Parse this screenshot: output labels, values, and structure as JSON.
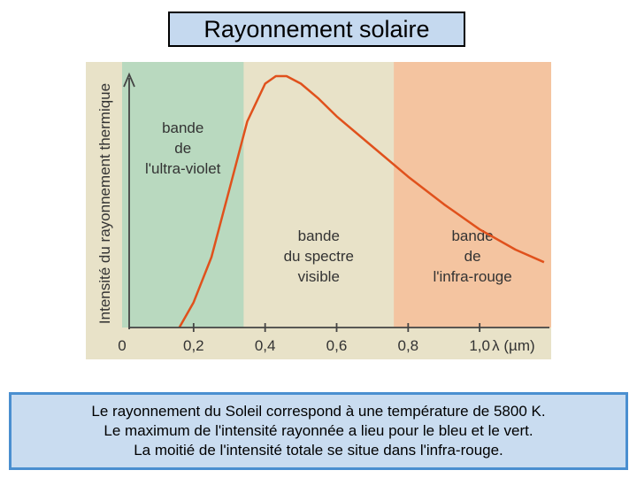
{
  "title": "Rayonnement solaire",
  "chart_data": {
    "type": "area",
    "ylabel": "Intensité du rayonnement thermique",
    "xlabel": "λ (µm)",
    "x_ticks": [
      "0",
      "0,2",
      "0,4",
      "0,6",
      "0,8",
      "1,0"
    ],
    "xlim": [
      0,
      1.2
    ],
    "bands": [
      {
        "label": [
          "bande",
          "de",
          "l'ultra-violet"
        ],
        "from": 0.0,
        "to": 0.34,
        "color": "#b9d9bf"
      },
      {
        "label": [
          "bande",
          "du spectre",
          "visible"
        ],
        "from": 0.34,
        "to": 0.76,
        "color": "#e8e2c8"
      },
      {
        "label": [
          "bande",
          "de",
          "l'infra-rouge"
        ],
        "from": 0.76,
        "to": 1.2,
        "color": "#f4c4a0"
      }
    ],
    "curve_color": "#e0511c",
    "series": [
      {
        "x": [
          0.16,
          0.2,
          0.25,
          0.3,
          0.35,
          0.4,
          0.43,
          0.46,
          0.5,
          0.55,
          0.6,
          0.7,
          0.8,
          0.9,
          1.0,
          1.1,
          1.18
        ],
        "y": [
          0.0,
          0.1,
          0.28,
          0.55,
          0.82,
          0.97,
          1.0,
          1.0,
          0.97,
          0.91,
          0.84,
          0.72,
          0.6,
          0.49,
          0.39,
          0.31,
          0.26
        ]
      }
    ]
  },
  "caption": [
    "Le rayonnement du Soleil correspond à une température de 5800 K.",
    "Le maximum de l'intensité rayonnée a lieu pour le bleu et le vert.",
    "La moitié de l'intensité totale se situe dans l'infra-rouge."
  ]
}
